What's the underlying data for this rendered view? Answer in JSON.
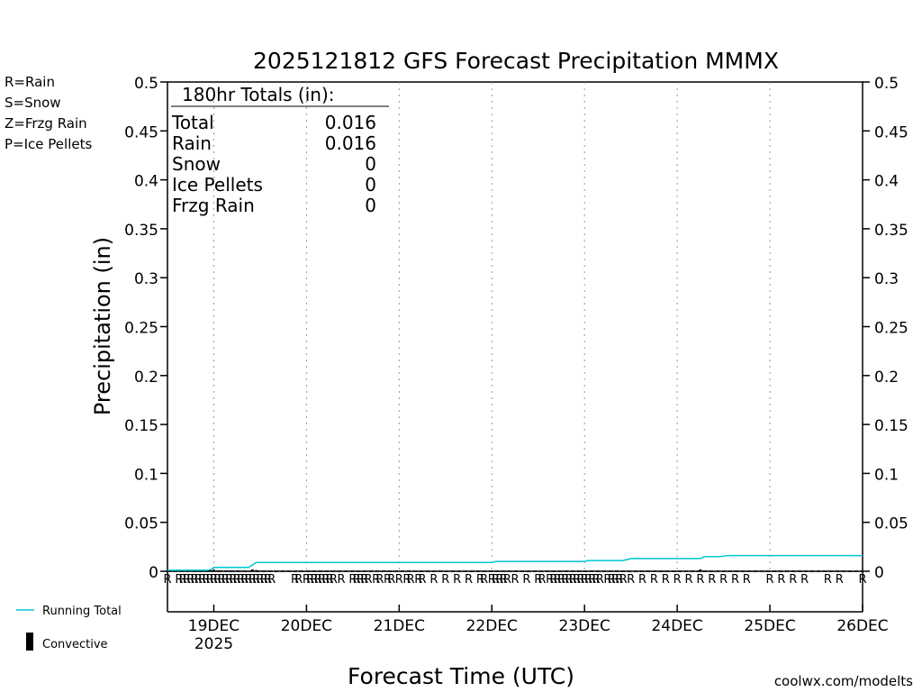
{
  "chart_data": {
    "type": "line",
    "title": "2025121812 GFS Forecast Precipitation MMMX",
    "xlabel": "Forecast Time (UTC)",
    "ylabel": "Precipitation (in)",
    "ylim": [
      0,
      0.5
    ],
    "y_ticks": [
      "0",
      "0.05",
      "0.1",
      "0.15",
      "0.2",
      "0.25",
      "0.3",
      "0.35",
      "0.4",
      "0.45",
      "0.5"
    ],
    "x_range_hours": [
      0,
      180
    ],
    "x_ticks": [
      {
        "label": "19DEC",
        "sublabel": "2025",
        "hour": 12
      },
      {
        "label": "20DEC",
        "sublabel": "",
        "hour": 36
      },
      {
        "label": "21DEC",
        "sublabel": "",
        "hour": 60
      },
      {
        "label": "22DEC",
        "sublabel": "",
        "hour": 84
      },
      {
        "label": "23DEC",
        "sublabel": "",
        "hour": 108
      },
      {
        "label": "24DEC",
        "sublabel": "",
        "hour": 132
      },
      {
        "label": "25DEC",
        "sublabel": "",
        "hour": 156
      },
      {
        "label": "26DEC",
        "sublabel": "",
        "hour": 180
      }
    ],
    "grid": "vertical dotted at day boundaries",
    "series": [
      {
        "name": "Running Total",
        "color": "#00c8d2",
        "points": [
          [
            0,
            0.001
          ],
          [
            11,
            0.001
          ],
          [
            12,
            0.004
          ],
          [
            21,
            0.004
          ],
          [
            23,
            0.009
          ],
          [
            84,
            0.009
          ],
          [
            85,
            0.01
          ],
          [
            108,
            0.01
          ],
          [
            109,
            0.011
          ],
          [
            118,
            0.011
          ],
          [
            120,
            0.013
          ],
          [
            138,
            0.013
          ],
          [
            139,
            0.015
          ],
          [
            143,
            0.015
          ],
          [
            145,
            0.016
          ],
          [
            180,
            0.016
          ]
        ]
      },
      {
        "name": "Convective",
        "color": "#000000",
        "points": [
          [
            11,
            0.0012
          ],
          [
            12,
            0.0015
          ],
          [
            13,
            0.0008
          ],
          [
            14,
            0.0008
          ],
          [
            16,
            0.0008
          ],
          [
            18,
            0.0008
          ],
          [
            22,
            0.0018
          ],
          [
            23,
            0.0012
          ],
          [
            24,
            0.0006
          ],
          [
            84,
            0.0006
          ],
          [
            86,
            0.0006
          ],
          [
            108,
            0.0006
          ],
          [
            110,
            0.0006
          ],
          [
            138,
            0.0018
          ],
          [
            139,
            0.0006
          ]
        ]
      }
    ],
    "precip_type_hours": [
      0,
      3,
      4,
      5,
      6,
      7,
      8,
      9,
      10,
      11,
      12,
      13,
      14,
      15,
      16,
      17,
      18,
      19,
      20,
      21,
      22,
      23,
      24,
      25,
      26,
      27,
      33,
      34,
      36,
      37,
      38,
      39,
      40,
      41,
      42,
      43,
      45,
      48,
      49,
      50,
      51,
      52,
      54,
      55,
      57,
      58,
      60,
      62,
      63,
      65,
      66,
      69,
      72,
      75,
      78,
      81,
      82,
      84,
      85,
      86,
      87,
      88,
      90,
      93,
      96,
      97,
      99,
      100,
      101,
      102,
      103,
      104,
      105,
      106,
      107,
      108,
      109,
      110,
      111,
      112,
      114,
      115,
      116,
      117,
      118,
      120,
      123,
      126,
      129,
      132,
      135,
      138,
      141,
      144,
      147,
      150,
      156,
      159,
      162,
      165,
      171,
      174,
      180
    ],
    "precip_type_symbol": "R",
    "precip_type_color": "#00dc00",
    "totals_box": {
      "header": "180hr Totals (in):",
      "rows": [
        {
          "label": "Total",
          "value": "0.016"
        },
        {
          "label": "Rain",
          "value": "0.016"
        },
        {
          "label": "Snow",
          "value": "0"
        },
        {
          "label": "Ice Pellets",
          "value": "0"
        },
        {
          "label": "Frzg Rain",
          "value": "0"
        }
      ]
    }
  },
  "type_legend": [
    {
      "label": "R=Rain",
      "color": "#00dc00"
    },
    {
      "label": "S=Snow",
      "color": "#3c50ff"
    },
    {
      "label": "Z=Frzg Rain",
      "color": "#f08c3c"
    },
    {
      "label": "P=Ice Pellets",
      "color": "#f01ea0"
    }
  ],
  "series_legend": {
    "running_total": "Running Total",
    "convective": "Convective"
  },
  "credit": "coolwx.com/modelts",
  "credit_color": "#e63c3c"
}
